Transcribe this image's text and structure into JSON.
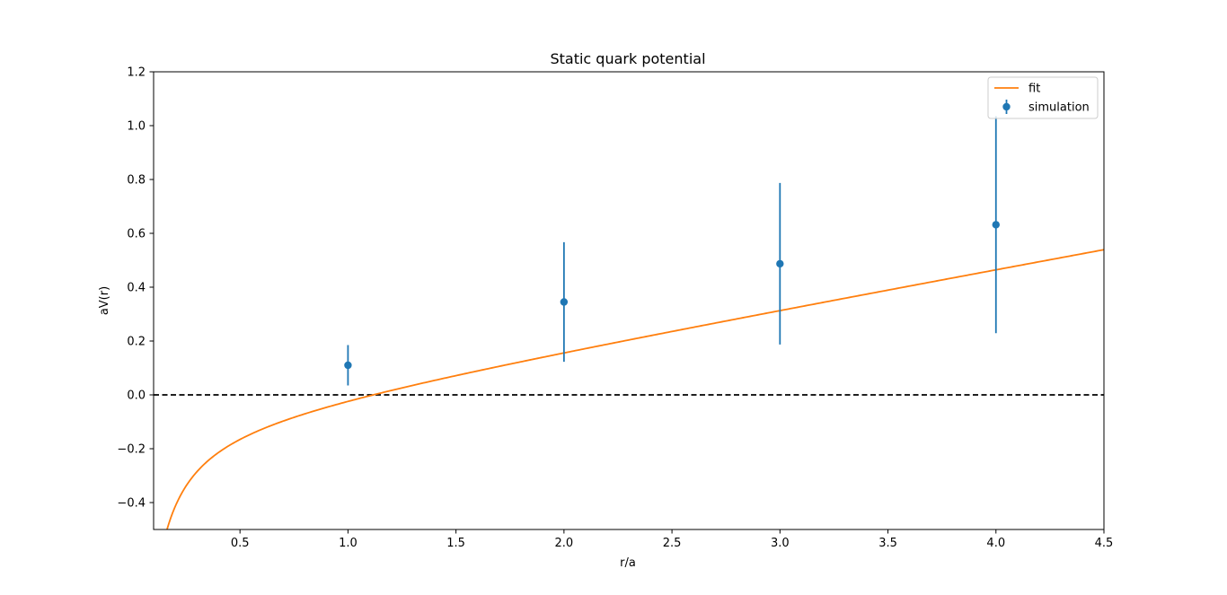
{
  "chart_data": {
    "type": "scatter",
    "title": "Static quark potential",
    "xlabel": "r/a",
    "ylabel": "aV(r)",
    "xlim": [
      0.1,
      4.5
    ],
    "ylim": [
      -0.5,
      1.2
    ],
    "xticks": [
      "0.5",
      "1.0",
      "1.5",
      "2.0",
      "2.5",
      "3.0",
      "3.5",
      "4.0",
      "4.5"
    ],
    "yticks": [
      "−0.4",
      "−0.2",
      "0.0",
      "0.2",
      "0.4",
      "0.6",
      "0.8",
      "1.0",
      "1.2"
    ],
    "grid": false,
    "legend_position": "top-right",
    "series": [
      {
        "name": "simulation",
        "kind": "errorbar",
        "color": "#1f77b4",
        "x": [
          1.0,
          2.0,
          3.0,
          4.0
        ],
        "y": [
          0.11,
          0.345,
          0.487,
          0.632
        ],
        "yerr": [
          0.075,
          0.222,
          0.3,
          0.403
        ]
      },
      {
        "name": "fit",
        "kind": "line",
        "color": "#ff7f0e",
        "model": "A + sigma*r - alpha/r",
        "params": {
          "A": -0.1017,
          "sigma": 0.1458,
          "alpha": 0.0684
        }
      }
    ],
    "reference_line": {
      "y": 0.0,
      "style": "dashed",
      "color": "#000000"
    }
  }
}
